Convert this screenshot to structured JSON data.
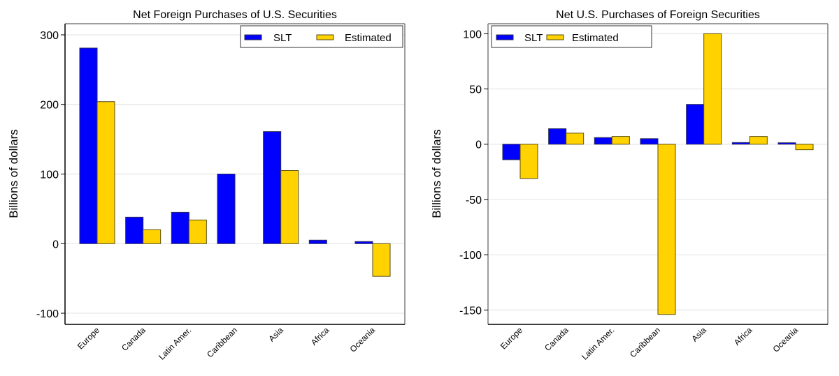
{
  "colors": {
    "slt": "#0000ff",
    "slt_border": "#2a2a5a",
    "estimated": "#ffd200",
    "estimated_border": "#5a4e10",
    "grid": "#e6e6e6",
    "frame_dark": "#000000",
    "frame_light": "#7f7f7f"
  },
  "chart_data": [
    {
      "type": "bar",
      "title": "Net Foreign Purchases of U.S. Securities",
      "xlabel": "",
      "ylabel": "Billions of dollars",
      "categories": [
        "Europe",
        "Canada",
        "Latin Amer.",
        "Caribbean",
        "Asia",
        "Africa",
        "Oceania"
      ],
      "series": [
        {
          "name": "SLT",
          "values": [
            281,
            38,
            45,
            100,
            161,
            5,
            3
          ]
        },
        {
          "name": "Estimated",
          "values": [
            204,
            20,
            34,
            null,
            105,
            null,
            -47
          ]
        }
      ],
      "ylim": [
        -116,
        316
      ],
      "yticks": [
        300,
        200,
        100,
        0,
        -100
      ],
      "ytick_labels": [
        "300",
        "200",
        "100",
        "0",
        "-100"
      ],
      "grid": true,
      "legend": {
        "placement": "top-right",
        "entries": [
          "SLT",
          "Estimated"
        ]
      }
    },
    {
      "type": "bar",
      "title": "Net U.S. Purchases of Foreign Securities",
      "xlabel": "",
      "ylabel": "Billions of dollars",
      "categories": [
        "Europe",
        "Canada",
        "Latin Amer.",
        "Caribbean",
        "Asia",
        "Africa",
        "Oceania"
      ],
      "series": [
        {
          "name": "SLT",
          "values": [
            -14,
            14,
            6,
            5,
            36,
            1.5,
            1.3
          ]
        },
        {
          "name": "Estimated",
          "values": [
            -31,
            10,
            7,
            -154,
            100,
            7,
            -5
          ]
        }
      ],
      "ylim": [
        -163,
        109
      ],
      "yticks": [
        100,
        50,
        0,
        -50,
        -100,
        -150
      ],
      "ytick_labels": [
        "100",
        "50",
        "0",
        "-50",
        "-100",
        "-150"
      ],
      "grid": true,
      "legend": {
        "placement": "top-left",
        "entries": [
          "SLT",
          "Estimated"
        ]
      }
    }
  ]
}
